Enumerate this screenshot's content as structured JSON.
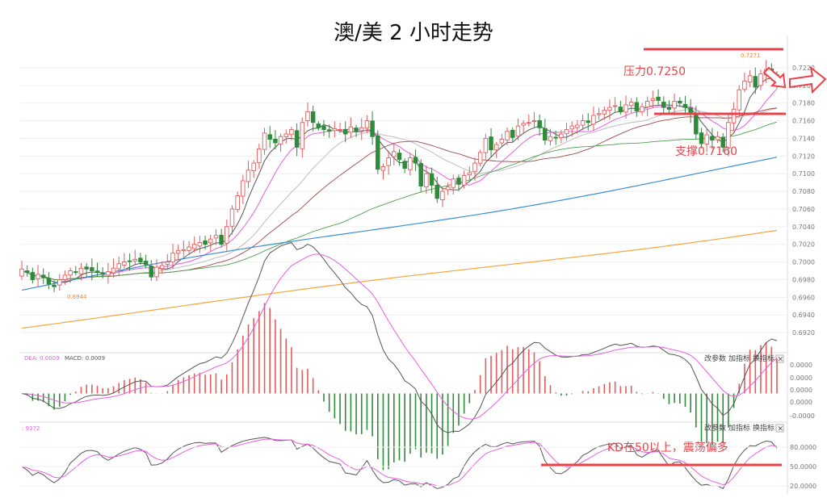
{
  "title": "澳/美 2 小时走势",
  "colors": {
    "up": "#e25c5c",
    "down": "#2e8b3a",
    "annotation": "#e8434b",
    "ma5": "#555555",
    "ma10": "#e85fe0",
    "ma20": "#bdbdbd",
    "ma30": "#a0484a",
    "ma60": "#4aa04a",
    "ma120": "#3a8fd6",
    "ma250": "#f4a640",
    "dif": "#555555",
    "dea": "#e85fe0"
  },
  "toolbar": {
    "param": "改参数",
    "add": "加指标",
    "switch": "换指标",
    "close": "×"
  },
  "annotations": {
    "resistance": "压力0.7250",
    "support": "支撑0.7160",
    "kd_note": "KD在50以上，震荡偏多",
    "high_label": "0.7271",
    "low_label": "0.6944"
  },
  "macd_legend": {
    "dea": "DEA: 0.0009",
    "macd": "MACD: 0.0009"
  },
  "kd_legend": ": 9372",
  "chart_data": [
    {
      "type": "candlestick",
      "name": "price",
      "ylim": [
        0.691,
        0.723
      ],
      "yticks": [
        "0.7220",
        "0.7200",
        "0.7180",
        "0.7160",
        "0.7140",
        "0.7120",
        "0.7100",
        "0.7080",
        "0.7060",
        "0.7040",
        "0.7020",
        "0.7000",
        "0.6980",
        "0.6960",
        "0.6940",
        "0.6920"
      ],
      "close": [
        0.6992,
        0.6988,
        0.698,
        0.6986,
        0.6982,
        0.6975,
        0.6972,
        0.698,
        0.6985,
        0.699,
        0.6988,
        0.6993,
        0.6992,
        0.699,
        0.6988,
        0.6986,
        0.6989,
        0.6993,
        0.6998,
        0.7,
        0.7001,
        0.7003,
        0.7,
        0.6997,
        0.6983,
        0.6994,
        0.6996,
        0.7,
        0.701,
        0.7013,
        0.7014,
        0.7017,
        0.702,
        0.7022,
        0.702,
        0.7026,
        0.703,
        0.702,
        0.704,
        0.706,
        0.7075,
        0.7092,
        0.7104,
        0.7112,
        0.7128,
        0.7146,
        0.7139,
        0.7135,
        0.7142,
        0.7145,
        0.715,
        0.713,
        0.7158,
        0.717,
        0.7158,
        0.7152,
        0.715,
        0.7148,
        0.7151,
        0.715,
        0.7145,
        0.7153,
        0.7148,
        0.7152,
        0.716,
        0.7142,
        0.7105,
        0.7108,
        0.7118,
        0.7125,
        0.7116,
        0.7106,
        0.7118,
        0.7112,
        0.7086,
        0.71,
        0.7087,
        0.7072,
        0.708,
        0.7085,
        0.7094,
        0.7088,
        0.7098,
        0.7101,
        0.7112,
        0.7124,
        0.714,
        0.7127,
        0.7133,
        0.7139,
        0.7148,
        0.7141,
        0.7154,
        0.7157,
        0.7158,
        0.716,
        0.7152,
        0.7138,
        0.7142,
        0.7141,
        0.7145,
        0.715,
        0.7154,
        0.7155,
        0.716,
        0.7158,
        0.7166,
        0.7168,
        0.7172,
        0.7175,
        0.7177,
        0.717,
        0.7178,
        0.7181,
        0.7171,
        0.7176,
        0.7182,
        0.7185,
        0.7183,
        0.7175,
        0.7173,
        0.7182,
        0.718,
        0.7175,
        0.7168,
        0.7145,
        0.7134,
        0.7144,
        0.7138,
        0.7142,
        0.713,
        0.7158,
        0.7173,
        0.7195,
        0.7205,
        0.7211,
        0.7198,
        0.7213,
        0.7218,
        0.7212,
        0.72
      ]
    },
    {
      "type": "macd",
      "ylim": [
        -0.00055,
        0.00065
      ],
      "yticks": [
        "0.0000",
        "0.0000",
        "0.0000",
        "0.0000",
        "-0.0000"
      ]
    },
    {
      "type": "kd",
      "ylim": [
        10,
        100
      ],
      "yticks": [
        "80.0000",
        "50.0000",
        "20.0000"
      ]
    }
  ]
}
